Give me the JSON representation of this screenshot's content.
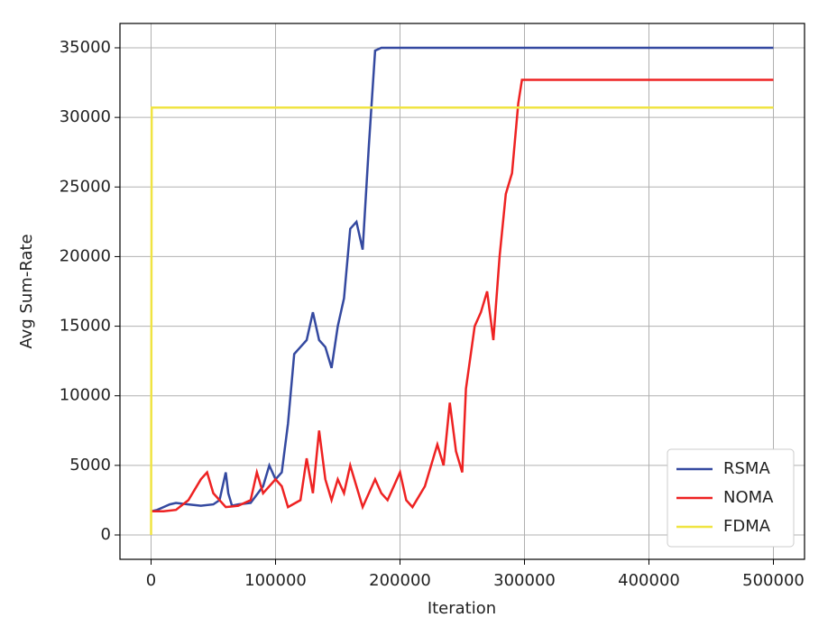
{
  "chart_data": {
    "type": "line",
    "x_label": "Iteration",
    "y_label": "Avg Sum-Rate",
    "xlim": [
      -25000,
      525000
    ],
    "ylim": [
      -1750,
      36750
    ],
    "xticks": [
      0,
      100000,
      200000,
      300000,
      400000,
      500000
    ],
    "yticks": [
      0,
      5000,
      10000,
      15000,
      20000,
      25000,
      30000,
      35000
    ],
    "grid": true,
    "legend": "lower right",
    "series": [
      {
        "name": "RSMA",
        "color": "#3449a0",
        "x": [
          0,
          5000,
          10000,
          15000,
          20000,
          30000,
          40000,
          50000,
          55000,
          60000,
          62000,
          65000,
          70000,
          80000,
          90000,
          95000,
          100000,
          105000,
          110000,
          115000,
          120000,
          125000,
          130000,
          135000,
          140000,
          145000,
          150000,
          155000,
          160000,
          165000,
          170000,
          175000,
          180000,
          185000,
          500000
        ],
        "values": [
          1700,
          1800,
          2000,
          2200,
          2300,
          2200,
          2100,
          2200,
          2500,
          4500,
          3000,
          2100,
          2200,
          2300,
          3500,
          5000,
          4000,
          4500,
          8000,
          13000,
          13500,
          14000,
          16000,
          14000,
          13500,
          12000,
          15000,
          17000,
          22000,
          22500,
          20500,
          28000,
          34800,
          35000,
          35000
        ]
      },
      {
        "name": "NOMA",
        "color": "#ee2222",
        "x": [
          0,
          10000,
          20000,
          30000,
          40000,
          45000,
          50000,
          60000,
          70000,
          80000,
          85000,
          90000,
          100000,
          105000,
          110000,
          120000,
          125000,
          130000,
          135000,
          140000,
          145000,
          150000,
          155000,
          160000,
          165000,
          170000,
          180000,
          185000,
          190000,
          200000,
          205000,
          210000,
          220000,
          230000,
          235000,
          240000,
          245000,
          250000,
          253000,
          260000,
          265000,
          270000,
          275000,
          280000,
          285000,
          290000,
          295000,
          298000,
          500000
        ],
        "values": [
          1700,
          1700,
          1800,
          2500,
          4000,
          4500,
          3000,
          2000,
          2100,
          2500,
          4500,
          3000,
          4000,
          3500,
          2000,
          2500,
          5500,
          3000,
          7500,
          4000,
          2500,
          4000,
          3000,
          5000,
          3500,
          2000,
          4000,
          3000,
          2500,
          4500,
          2500,
          2000,
          3500,
          6500,
          5000,
          9500,
          6000,
          4500,
          10500,
          15000,
          16000,
          17500,
          14000,
          20000,
          24500,
          26000,
          31000,
          32700,
          32700
        ]
      },
      {
        "name": "FDMA",
        "color": "#f0e442",
        "x": [
          0,
          500,
          500000
        ],
        "values": [
          0,
          30700,
          30700
        ]
      }
    ]
  }
}
